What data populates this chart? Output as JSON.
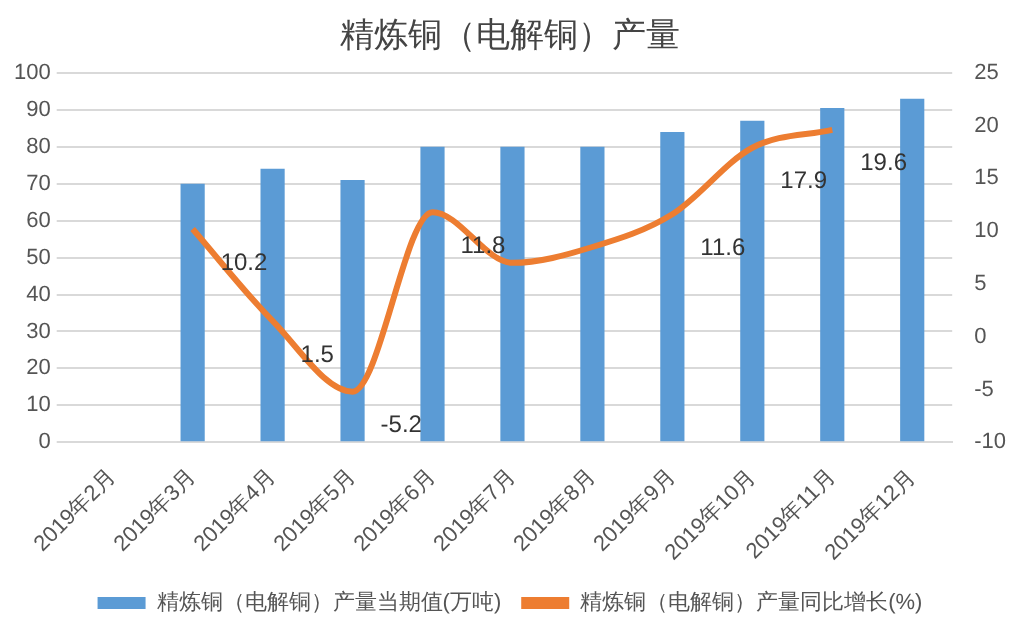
{
  "chart_data": {
    "type": "bar",
    "title": "精炼铜（电解铜）产量",
    "categories": [
      "2019年2月",
      "2019年3月",
      "2019年4月",
      "2019年5月",
      "2019年6月",
      "2019年7月",
      "2019年8月",
      "2019年9月",
      "2019年10月",
      "2019年11月",
      "2019年12月"
    ],
    "series": [
      {
        "name": "精炼铜（电解铜）产量当期值(万吨)",
        "color": "#5b9bd5",
        "values": [
          null,
          70,
          74,
          71,
          80,
          80,
          80,
          84,
          87,
          90.5,
          93
        ]
      },
      {
        "name": "精炼铜（电解铜）产量同比增长(%)",
        "type": "line",
        "axis": "y2",
        "color": "#ed7d31",
        "values": [
          null,
          10.2,
          1.5,
          -5.2,
          11.8,
          7,
          8.5,
          11.6,
          17.9,
          19.6,
          null
        ],
        "value_labels": [
          null,
          "10.2",
          "1.5",
          "-5.2",
          "11.8",
          null,
          null,
          "11.6",
          "17.9",
          "19.6",
          null
        ]
      }
    ],
    "ylim": [
      0,
      100
    ],
    "yticks": [
      0,
      10,
      20,
      30,
      40,
      50,
      60,
      70,
      80,
      90,
      100
    ],
    "y2lim": [
      -10,
      25
    ],
    "y2ticks": [
      -10,
      -5,
      0,
      5,
      10,
      15,
      20,
      25
    ],
    "grid": "y",
    "legend": "bottom",
    "marker": "none",
    "line_style": "solid"
  }
}
